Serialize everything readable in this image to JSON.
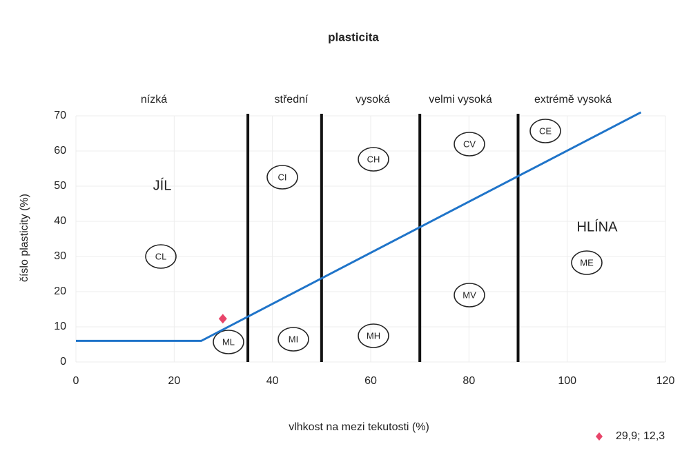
{
  "chart_data": {
    "type": "line",
    "title": "plasticita",
    "x_label": "vlhkost na mezi tekutosti (%)",
    "y_label": "číslo plasticity (%)",
    "xlim": [
      0,
      120
    ],
    "xticks": [
      0,
      20,
      40,
      60,
      80,
      100,
      120
    ],
    "ylim": [
      0,
      70
    ],
    "yticks": [
      0,
      10,
      20,
      30,
      40,
      50,
      60,
      70
    ],
    "grid": true,
    "boundaries": [
      35,
      50,
      70,
      90
    ],
    "zones": [
      "nízká",
      "střední",
      "vysoká",
      "velmi vysoká",
      "extrémě vysoká"
    ],
    "regions": [
      "JÍL",
      "HLÍNA"
    ],
    "symbols": [
      "CL",
      "CI",
      "CH",
      "CV",
      "CE",
      "ML",
      "MI",
      "MH",
      "MV",
      "ME"
    ],
    "legend": "bottom-right",
    "series": [
      {
        "type": "line",
        "color": "#1f74c9",
        "x": [
          0,
          25.5,
          115
        ],
        "values": [
          6,
          6,
          71
        ]
      },
      {
        "type": "scatter",
        "name": "29,9; 12,3",
        "color": "#e8456a",
        "marker": "diamond",
        "x": [
          29.9
        ],
        "values": [
          12.3
        ]
      }
    ]
  }
}
